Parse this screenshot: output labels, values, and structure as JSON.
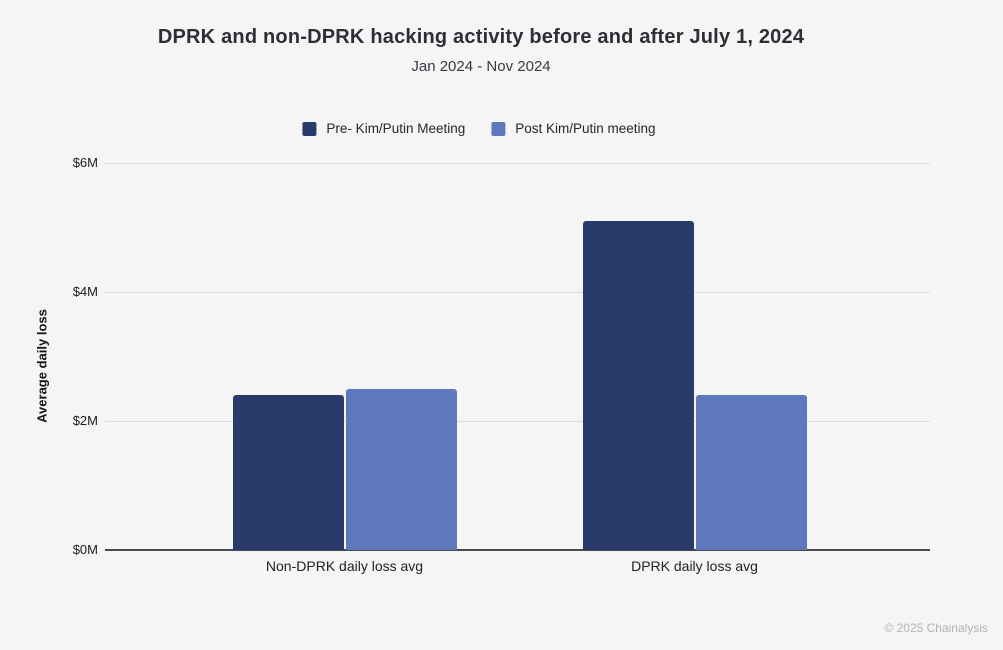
{
  "header": {
    "title": "DPRK and non-DPRK hacking activity before and after July 1, 2024",
    "subtitle": "Jan 2024 - Nov 2024"
  },
  "chart_data": {
    "type": "bar",
    "title": "DPRK and non-DPRK hacking activity before and after July 1, 2024",
    "subtitle": "Jan 2024 - Nov 2024",
    "categories": [
      "Non-DPRK daily loss avg",
      "DPRK daily loss avg"
    ],
    "series": [
      {
        "name": "Pre- Kim/Putin Meeting",
        "color": "#2a3a6b",
        "values": [
          2.4,
          5.1
        ]
      },
      {
        "name": "Post Kim/Putin meeting",
        "color": "#5d78bc",
        "values": [
          2.5,
          2.4
        ]
      }
    ],
    "xlabel": "",
    "ylabel": "Average daily loss",
    "y_ticks": [
      {
        "value": 0,
        "label": "$0M"
      },
      {
        "value": 2,
        "label": "$2M"
      },
      {
        "value": 4,
        "label": "$4M"
      },
      {
        "value": 6,
        "label": "$6M"
      }
    ],
    "ylim": [
      0,
      6
    ],
    "grid": true,
    "legend_position": "top"
  },
  "footer": {
    "copyright": "© 2025 Chainalysis"
  }
}
